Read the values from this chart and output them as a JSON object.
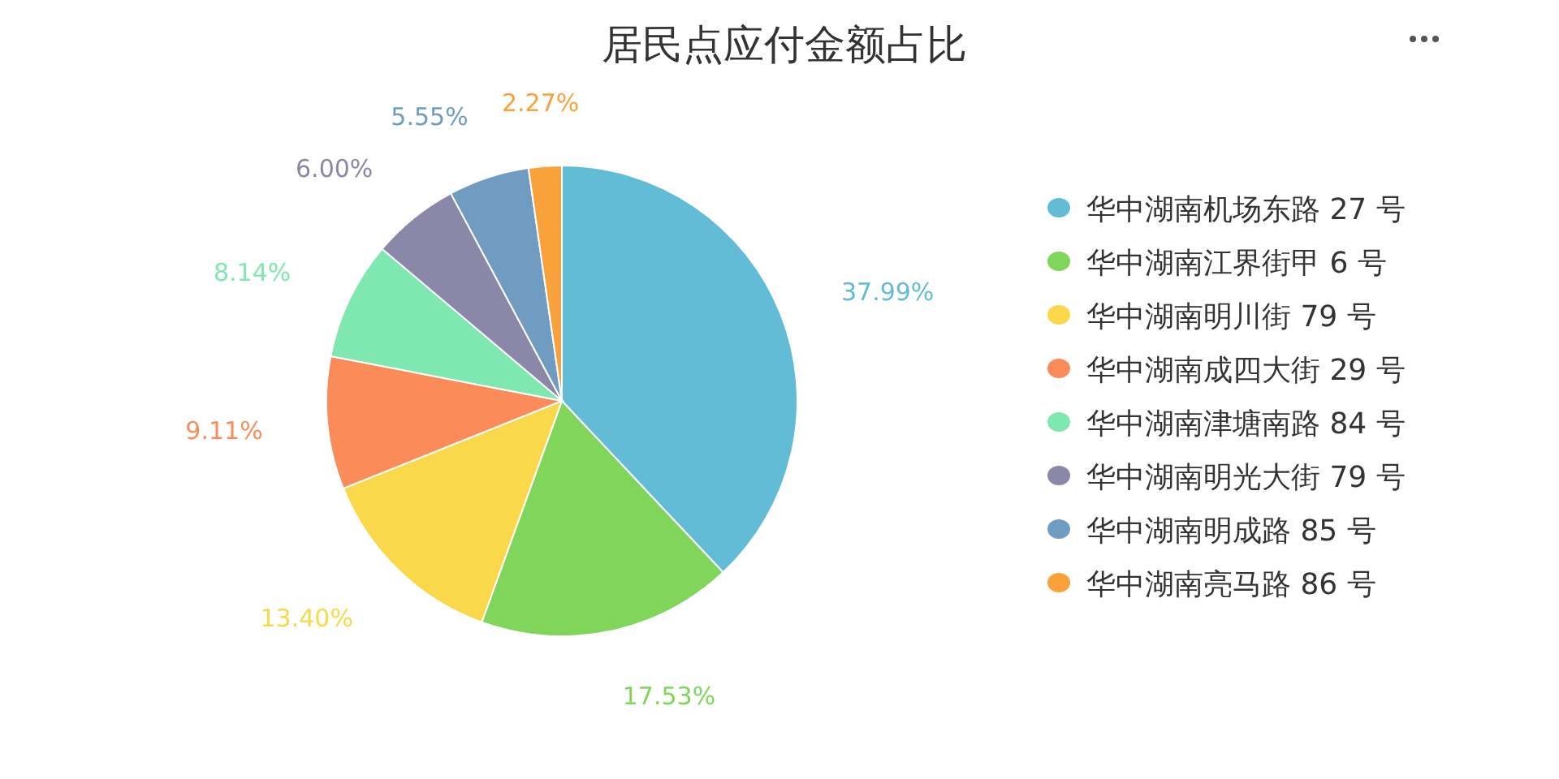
{
  "chart_data": {
    "type": "pie",
    "title": "居民点应付金额占比",
    "categories": [
      "华中湖南机场东路 27 号",
      "华中湖南江界街甲 6 号",
      "华中湖南明川街 79 号",
      "华中湖南成四大街 29 号",
      "华中湖南津塘南路 84 号",
      "华中湖南明光大街 79 号",
      "华中湖南明成路 85 号",
      "华中湖南亮马路 86 号"
    ],
    "values": [
      37.99,
      17.53,
      13.4,
      9.11,
      8.14,
      6.0,
      5.55,
      2.27
    ],
    "value_labels": [
      "37.99%",
      "17.53%",
      "13.40%",
      "9.11%",
      "8.14%",
      "6.00%",
      "5.55%",
      "2.27%"
    ],
    "colors": [
      "#62bcd6",
      "#7fd65a",
      "#f9d84a",
      "#fb8c5a",
      "#7ee8b0",
      "#8a87a8",
      "#6f9cc0",
      "#f9a13b"
    ],
    "legend": "right"
  }
}
